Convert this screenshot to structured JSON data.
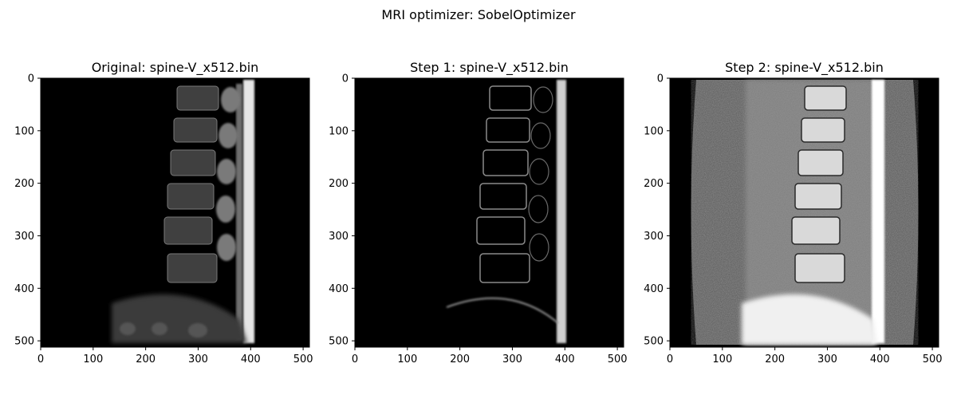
{
  "figure": {
    "suptitle": "MRI optimizer: SobelOptimizer"
  },
  "chart_data": [
    {
      "type": "image",
      "title": "Original: spine-V_x512.bin",
      "colormap": "gray",
      "x_ticks": [
        0,
        100,
        200,
        300,
        400,
        500
      ],
      "y_ticks": [
        0,
        100,
        200,
        300,
        400,
        500
      ],
      "xlim": [
        0,
        512
      ],
      "ylim": [
        512,
        0
      ],
      "grid": false
    },
    {
      "type": "image",
      "title": "Step 1: spine-V_x512.bin",
      "colormap": "gray",
      "x_ticks": [
        0,
        100,
        200,
        300,
        400,
        500
      ],
      "y_ticks": [
        0,
        100,
        200,
        300,
        400,
        500
      ],
      "xlim": [
        0,
        512
      ],
      "ylim": [
        512,
        0
      ],
      "grid": false
    },
    {
      "type": "image",
      "title": "Step 2: spine-V_x512.bin",
      "colormap": "gray",
      "x_ticks": [
        0,
        100,
        200,
        300,
        400,
        500
      ],
      "y_ticks": [
        0,
        100,
        200,
        300,
        400,
        500
      ],
      "xlim": [
        0,
        512
      ],
      "ylim": [
        512,
        0
      ],
      "grid": false
    }
  ]
}
